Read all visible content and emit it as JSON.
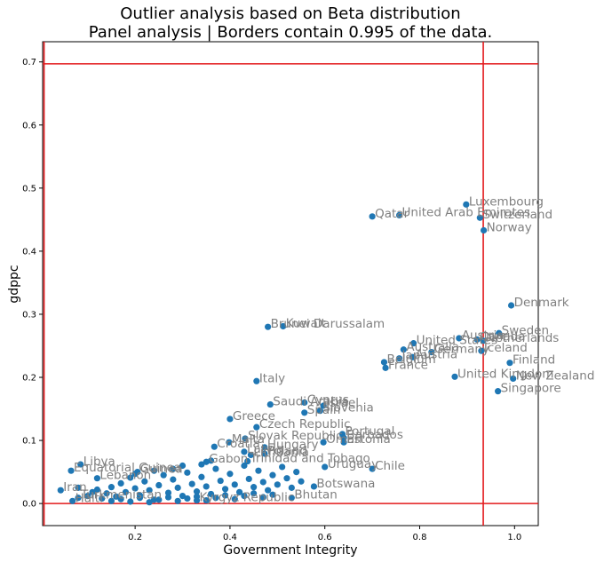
{
  "chart_data": {
    "type": "scatter",
    "title_line1": "Outlier analysis based on Beta distribution",
    "title_line2": "Panel analysis | Borders contain 0.995 of the data.",
    "xlabel": "Government Integrity",
    "ylabel": "gdppc",
    "xlim": [
      0.005,
      1.05
    ],
    "ylim": [
      -0.035,
      0.732
    ],
    "xticks": [
      0.2,
      0.4,
      0.6,
      0.8,
      1.0
    ],
    "xtick_labels": [
      "0.2",
      "0.4",
      "0.6",
      "0.8",
      "1.0"
    ],
    "yticks": [
      0.0,
      0.1,
      0.2,
      0.3,
      0.4,
      0.5,
      0.6,
      0.7
    ],
    "ytick_labels": [
      "0.0",
      "0.1",
      "0.2",
      "0.3",
      "0.4",
      "0.5",
      "0.6",
      "0.7"
    ],
    "borders": {
      "x": [
        0.008,
        0.934
      ],
      "y": [
        0.0,
        0.697
      ]
    },
    "point_color": "#1f77b4",
    "border_color": "#e31a1c",
    "label_color": "#808080",
    "labeled_points": [
      {
        "label": "Luxembourg",
        "x": 0.898,
        "y": 0.474
      },
      {
        "label": "Qatar",
        "x": 0.7,
        "y": 0.455
      },
      {
        "label": "United Arab Emirates",
        "x": 0.757,
        "y": 0.457
      },
      {
        "label": "Switzerland",
        "x": 0.927,
        "y": 0.453
      },
      {
        "label": "Norway",
        "x": 0.935,
        "y": 0.433
      },
      {
        "label": "Denmark",
        "x": 0.993,
        "y": 0.314
      },
      {
        "label": "Brunei Darussalam",
        "x": 0.48,
        "y": 0.28
      },
      {
        "label": "Kuwait",
        "x": 0.512,
        "y": 0.281
      },
      {
        "label": "Sweden",
        "x": 0.967,
        "y": 0.27
      },
      {
        "label": "Austria",
        "x": 0.883,
        "y": 0.262
      },
      {
        "label": "Canada",
        "x": 0.921,
        "y": 0.26
      },
      {
        "label": "Netherlands",
        "x": 0.934,
        "y": 0.258
      },
      {
        "label": "United States",
        "x": 0.787,
        "y": 0.254
      },
      {
        "label": "Germany",
        "x": 0.825,
        "y": 0.24
      },
      {
        "label": "Iceland",
        "x": 0.93,
        "y": 0.242
      },
      {
        "label": "Finland",
        "x": 0.99,
        "y": 0.223
      },
      {
        "label": "Australia",
        "x": 0.766,
        "y": 0.244
      },
      {
        "label": "Japan",
        "x": 0.757,
        "y": 0.23
      },
      {
        "label": "Austria",
        "x": 0.785,
        "y": 0.232
      },
      {
        "label": "Belgium",
        "x": 0.725,
        "y": 0.224
      },
      {
        "label": "France",
        "x": 0.728,
        "y": 0.215
      },
      {
        "label": "United Kingdom",
        "x": 0.874,
        "y": 0.201
      },
      {
        "label": "New Zealand",
        "x": 0.997,
        "y": 0.198
      },
      {
        "label": "Singapore",
        "x": 0.965,
        "y": 0.178
      },
      {
        "label": "Italy",
        "x": 0.456,
        "y": 0.194
      },
      {
        "label": "Saudi Arabia",
        "x": 0.485,
        "y": 0.157
      },
      {
        "label": "Cyprus",
        "x": 0.557,
        "y": 0.16
      },
      {
        "label": "Israel",
        "x": 0.597,
        "y": 0.155
      },
      {
        "label": "Slovenia",
        "x": 0.59,
        "y": 0.147
      },
      {
        "label": "Spain",
        "x": 0.557,
        "y": 0.144
      },
      {
        "label": "Greece",
        "x": 0.4,
        "y": 0.134
      },
      {
        "label": "Czech Republic",
        "x": 0.456,
        "y": 0.121
      },
      {
        "label": "Portugal",
        "x": 0.637,
        "y": 0.11
      },
      {
        "label": "Barbados",
        "x": 0.64,
        "y": 0.104
      },
      {
        "label": "Estonia",
        "x": 0.64,
        "y": 0.097
      },
      {
        "label": "Oman",
        "x": 0.597,
        "y": 0.097
      },
      {
        "label": "Slovak Republic",
        "x": 0.432,
        "y": 0.103
      },
      {
        "label": "Malta",
        "x": 0.398,
        "y": 0.097
      },
      {
        "label": "Croatia",
        "x": 0.367,
        "y": 0.09
      },
      {
        "label": "Hungary",
        "x": 0.473,
        "y": 0.089
      },
      {
        "label": "Latvia",
        "x": 0.43,
        "y": 0.082
      },
      {
        "label": "Poland",
        "x": 0.473,
        "y": 0.079
      },
      {
        "label": "Lithuania",
        "x": 0.444,
        "y": 0.077
      },
      {
        "label": "Gabon",
        "x": 0.35,
        "y": 0.066
      },
      {
        "label": "Trinidad and Tobago",
        "x": 0.437,
        "y": 0.067
      },
      {
        "label": "Uruguay",
        "x": 0.6,
        "y": 0.058
      },
      {
        "label": "Chile",
        "x": 0.7,
        "y": 0.055
      },
      {
        "label": "Libya",
        "x": 0.085,
        "y": 0.062
      },
      {
        "label": "Equatorial Guinea",
        "x": 0.065,
        "y": 0.052
      },
      {
        "label": "Lebanon",
        "x": 0.12,
        "y": 0.04
      },
      {
        "label": "Guinea",
        "x": 0.205,
        "y": 0.05
      },
      {
        "label": "Botswana",
        "x": 0.577,
        "y": 0.027
      },
      {
        "label": "Bhutan",
        "x": 0.53,
        "y": 0.009
      },
      {
        "label": "Iran",
        "x": 0.043,
        "y": 0.021
      },
      {
        "label": "Turkmenistan",
        "x": 0.08,
        "y": 0.009
      },
      {
        "label": "Haiti",
        "x": 0.068,
        "y": 0.004
      },
      {
        "label": "Kyrgyz Republic",
        "x": 0.33,
        "y": 0.005
      }
    ],
    "cluster_points": [
      [
        0.08,
        0.025
      ],
      [
        0.1,
        0.012
      ],
      [
        0.11,
        0.018
      ],
      [
        0.12,
        0.022
      ],
      [
        0.13,
        0.008
      ],
      [
        0.14,
        0.016
      ],
      [
        0.15,
        0.026
      ],
      [
        0.16,
        0.011
      ],
      [
        0.17,
        0.032
      ],
      [
        0.18,
        0.018
      ],
      [
        0.19,
        0.041
      ],
      [
        0.2,
        0.024
      ],
      [
        0.21,
        0.013
      ],
      [
        0.22,
        0.035
      ],
      [
        0.23,
        0.021
      ],
      [
        0.24,
        0.006
      ],
      [
        0.25,
        0.029
      ],
      [
        0.26,
        0.045
      ],
      [
        0.27,
        0.017
      ],
      [
        0.28,
        0.038
      ],
      [
        0.29,
        0.025
      ],
      [
        0.3,
        0.012
      ],
      [
        0.31,
        0.049
      ],
      [
        0.32,
        0.031
      ],
      [
        0.33,
        0.019
      ],
      [
        0.34,
        0.042
      ],
      [
        0.35,
        0.027
      ],
      [
        0.36,
        0.015
      ],
      [
        0.37,
        0.055
      ],
      [
        0.38,
        0.036
      ],
      [
        0.39,
        0.023
      ],
      [
        0.4,
        0.047
      ],
      [
        0.41,
        0.03
      ],
      [
        0.42,
        0.018
      ],
      [
        0.43,
        0.06
      ],
      [
        0.44,
        0.039
      ],
      [
        0.45,
        0.026
      ],
      [
        0.46,
        0.052
      ],
      [
        0.47,
        0.034
      ],
      [
        0.48,
        0.021
      ],
      [
        0.49,
        0.045
      ],
      [
        0.5,
        0.03
      ],
      [
        0.51,
        0.058
      ],
      [
        0.52,
        0.04
      ],
      [
        0.53,
        0.025
      ],
      [
        0.54,
        0.05
      ],
      [
        0.55,
        0.035
      ],
      [
        0.15,
        0.004
      ],
      [
        0.17,
        0.007
      ],
      [
        0.19,
        0.003
      ],
      [
        0.21,
        0.009
      ],
      [
        0.23,
        0.002
      ],
      [
        0.25,
        0.006
      ],
      [
        0.27,
        0.01
      ],
      [
        0.29,
        0.004
      ],
      [
        0.31,
        0.008
      ],
      [
        0.33,
        0.011
      ],
      [
        0.35,
        0.005
      ],
      [
        0.37,
        0.009
      ],
      [
        0.39,
        0.013
      ],
      [
        0.41,
        0.007
      ],
      [
        0.43,
        0.012
      ],
      [
        0.45,
        0.016
      ],
      [
        0.47,
        0.01
      ],
      [
        0.49,
        0.014
      ],
      [
        0.2,
        0.047
      ],
      [
        0.24,
        0.052
      ],
      [
        0.28,
        0.055
      ],
      [
        0.3,
        0.06
      ],
      [
        0.34,
        0.062
      ],
      [
        0.36,
        0.068
      ]
    ]
  }
}
